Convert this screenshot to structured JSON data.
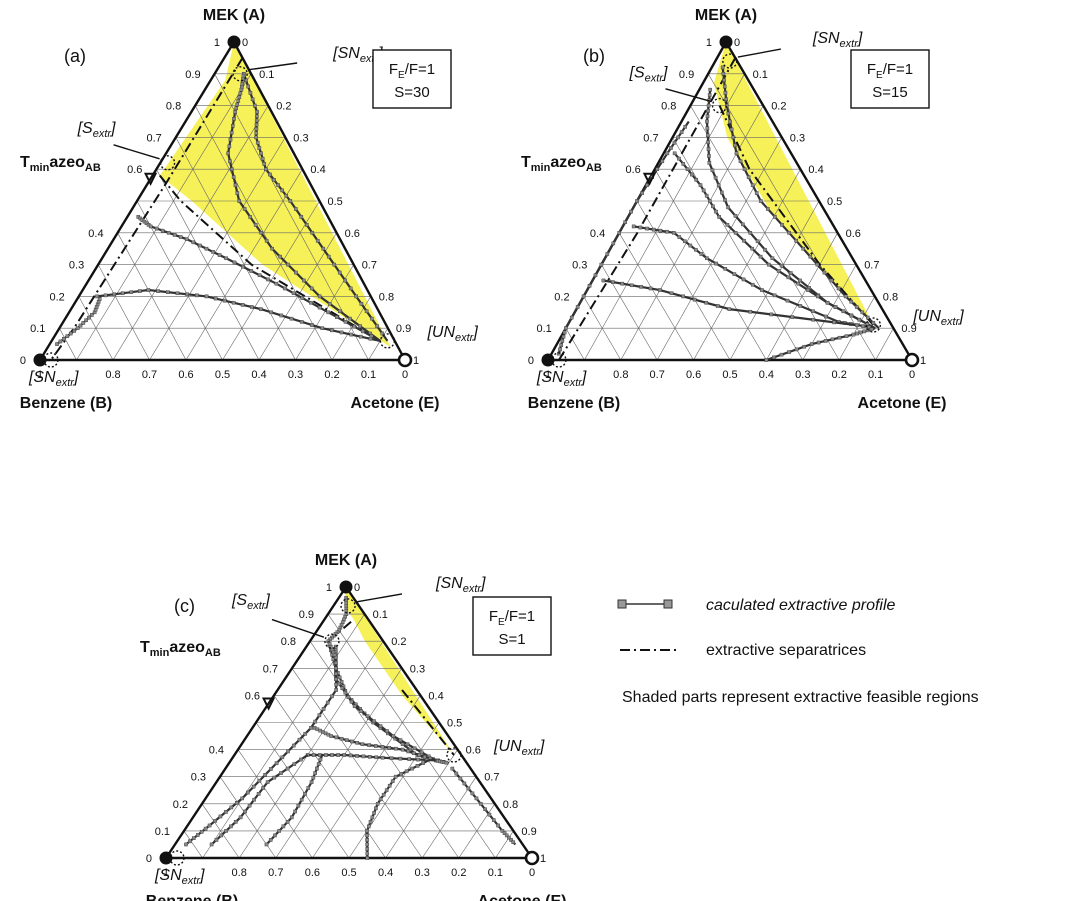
{
  "panels": [
    {
      "id": "a",
      "label": "(a)",
      "vertex_top": "MEK (A)",
      "vertex_left": "Benzene (B)",
      "vertex_right": "Acetone (E)",
      "azeo_label": "T",
      "azeo_label_sub": "min",
      "azeo_label_mid": "azeo",
      "azeo_label_sub2": "AB",
      "box_line1_pre": "F",
      "box_line1_sub": "E",
      "box_line1_post": "/F=1",
      "box_line2": "S=30",
      "annotations": {
        "sn_top": "[SN",
        "s_extr": "[S",
        "un_extr": "[UN",
        "sn_bottom": "[SN",
        "suffix": "extr",
        "close": "]"
      }
    },
    {
      "id": "b",
      "label": "(b)",
      "vertex_top": "MEK (A)",
      "vertex_left": "Benzene (B)",
      "vertex_right": "Acetone (E)",
      "azeo_label": "T",
      "azeo_label_sub": "min",
      "azeo_label_mid": "azeo",
      "azeo_label_sub2": "AB",
      "box_line1_pre": "F",
      "box_line1_sub": "E",
      "box_line1_post": "/F=1",
      "box_line2": "S=15",
      "annotations": {
        "sn_top": "[SN",
        "s_extr": "[S",
        "un_extr": "[UN",
        "sn_bottom": "[SN",
        "suffix": "extr",
        "close": "]"
      }
    },
    {
      "id": "c",
      "label": "(c)",
      "vertex_top": "MEK (A)",
      "vertex_left": "Benzene (B)",
      "vertex_right": "Acetone (E)",
      "azeo_label": "T",
      "azeo_label_sub": "min",
      "azeo_label_mid": "azeo",
      "azeo_label_sub2": "AB",
      "box_line1_pre": "F",
      "box_line1_sub": "E",
      "box_line1_post": "/F=1",
      "box_line2": "S=1",
      "annotations": {
        "sn_top": "[SN",
        "s_extr": "[S",
        "un_extr": "[UN",
        "sn_bottom": "[SN",
        "suffix": "extr",
        "close": "]"
      }
    }
  ],
  "ticks": {
    "left": [
      "0",
      "0.1",
      "0.2",
      "0.3",
      "0.4",
      "0.6",
      "0.7",
      "0.8",
      "0.9",
      "1"
    ],
    "right": [
      "0",
      "0.1",
      "0.2",
      "0.3",
      "0.4",
      "0.5",
      "0.6",
      "0.7",
      "0.8",
      "0.9",
      "1"
    ],
    "bottom": [
      "1",
      "0.8",
      "0.7",
      "0.6",
      "0.5",
      "0.4",
      "0.3",
      "0.2",
      "0.1",
      "0"
    ]
  },
  "legend": {
    "profile": "caculated extractive profile",
    "separatrices": "extractive separatrices",
    "shaded_note": "Shaded parts represent extractive feasible regions"
  },
  "colors": {
    "shade": "#f5ef3c",
    "line": "#333333",
    "marker": "#888888"
  }
}
